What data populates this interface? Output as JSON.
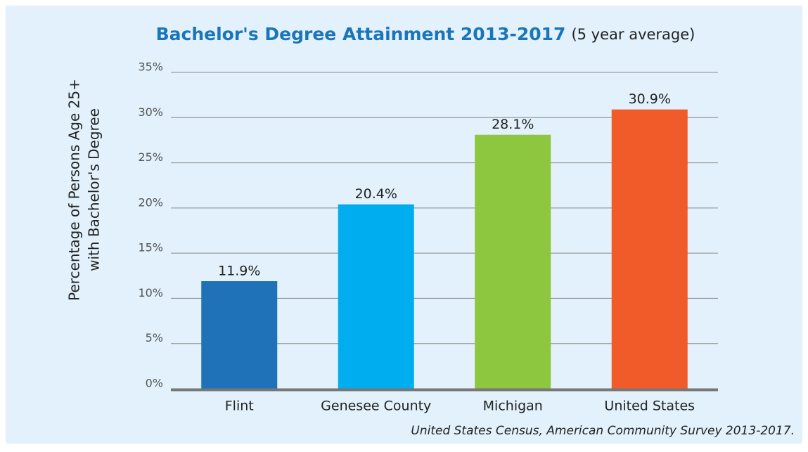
{
  "chart_data": {
    "type": "bar",
    "title": "Bachelor's Degree Attainment 2013-2017",
    "subtitle": "(5 year average)",
    "ylabel": [
      "Percentage of Persons Age 25+",
      "with Bachelor's Degree"
    ],
    "categories": [
      "Flint",
      "Genesee County",
      "Michigan",
      "United States"
    ],
    "values": [
      11.9,
      20.4,
      28.1,
      30.9
    ],
    "value_labels": [
      "11.9%",
      "20.4%",
      "28.1%",
      "30.9%"
    ],
    "colors": [
      "#1f72b8",
      "#00aeef",
      "#8dc63f",
      "#f15a29"
    ],
    "ylim": [
      0,
      35
    ],
    "yticks": [
      {
        "value": 0,
        "label": "0%"
      },
      {
        "value": 5,
        "label": "5%"
      },
      {
        "value": 10,
        "label": "10%"
      },
      {
        "value": 15,
        "label": "15%"
      },
      {
        "value": 20,
        "label": "20%"
      },
      {
        "value": 25,
        "label": "25%"
      },
      {
        "value": 30,
        "label": "30%"
      },
      {
        "value": 35,
        "label": "35%"
      }
    ],
    "grid": true,
    "source": "United States Census, American Community Survey 2013-2017."
  }
}
